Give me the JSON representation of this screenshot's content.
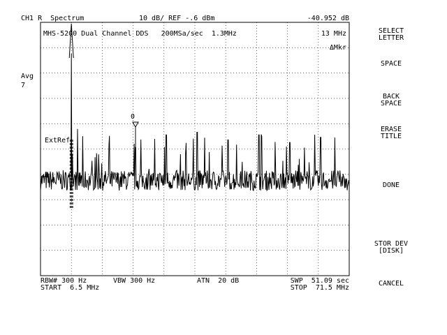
{
  "header": {
    "channel": "CH1 R  Spectrum",
    "scale_ref": "10 dB/ REF -.6 dBm",
    "marker_value": "-40.952 dB"
  },
  "trace_title": "MHS-5200 Dual Channel DDS   200MSa/sec  1.3MHz",
  "marker_freq": "13 MHz",
  "delta_marker": "ΔMkr",
  "averaging": {
    "label": "Avg",
    "count": "7"
  },
  "ref_marker_label": "ExtRef",
  "marker_zero": "0",
  "footer": {
    "rbw": "RBW# 300 Hz",
    "vbw": "VBW 300 Hz",
    "atn": "ATN  20 dB",
    "swp": "SWP  51.09 sec",
    "start": "START  6.5 MHz",
    "stop": "STOP  71.5 MHz"
  },
  "softkeys": {
    "select_letter": "SELECT\nLETTER",
    "space": "SPACE",
    "back_space": "BACK\nSPACE",
    "erase_title": "ERASE\nTITLE",
    "done": "DONE",
    "stor_dev": "STOR DEV\n[DISK]",
    "cancel": "CANCEL"
  },
  "trace": {
    "start_mhz": 6.5,
    "stop_mhz": 71.5,
    "ref_level_dbm": -0.6,
    "db_per_div": 10,
    "noise_floor_dbm": -63,
    "peaks": [
      {
        "freq_mhz": 13.0,
        "level_dbm": -13
      },
      {
        "freq_mhz": 26.5,
        "level_dbm": -50
      },
      {
        "freq_mhz": 33.0,
        "level_dbm": -45
      },
      {
        "freq_mhz": 39.5,
        "level_dbm": -44
      },
      {
        "freq_mhz": 46.0,
        "level_dbm": -47
      },
      {
        "freq_mhz": 52.5,
        "level_dbm": -45
      },
      {
        "freq_mhz": 59.0,
        "level_dbm": -48
      },
      {
        "freq_mhz": 65.5,
        "level_dbm": -46
      }
    ]
  }
}
